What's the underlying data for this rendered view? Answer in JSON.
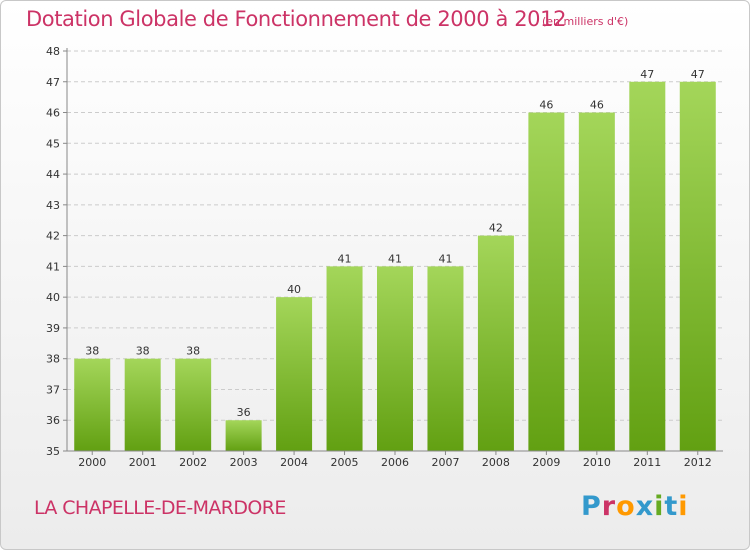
{
  "title": "Dotation Globale de Fonctionnement de 2000 à 2012",
  "unit_note": "(en milliers d'€)",
  "commune": "LA CHAPELLE-DE-MARDORE",
  "logo": {
    "text": "Proxiti",
    "letter_colors": [
      "#3399cc",
      "#cc3366",
      "#ff9900",
      "#3399cc",
      "#66aa22",
      "#3399cc",
      "#ff9900"
    ]
  },
  "colors": {
    "bar_top": "#a4d65a",
    "bar_bottom": "#62a012",
    "title": "#cc3366",
    "grid": "#cccccc"
  },
  "chart_data": {
    "type": "bar",
    "title": "Dotation Globale de Fonctionnement de 2000 à 2012",
    "subtitle": "(en milliers d'€)",
    "categories": [
      "2000",
      "2001",
      "2002",
      "2003",
      "2004",
      "2005",
      "2006",
      "2007",
      "2008",
      "2009",
      "2010",
      "2011",
      "2012"
    ],
    "values": [
      38,
      38,
      38,
      36,
      40,
      41,
      41,
      41,
      42,
      46,
      46,
      47,
      47
    ],
    "xlabel": "",
    "ylabel": "",
    "ylim": [
      35,
      48
    ],
    "yticks": [
      35,
      36,
      37,
      38,
      39,
      40,
      41,
      42,
      43,
      44,
      45,
      46,
      47,
      48
    ],
    "grid": true,
    "data_labels": true
  }
}
